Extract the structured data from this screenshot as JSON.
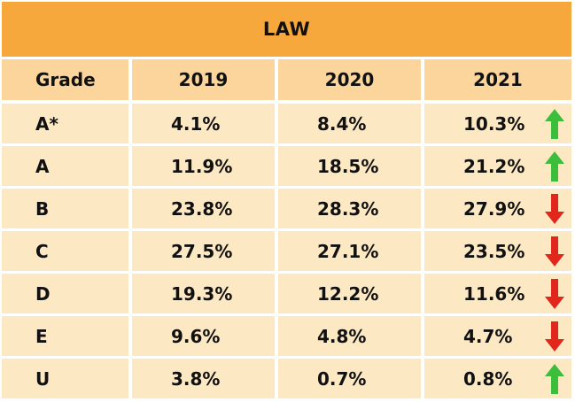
{
  "table": {
    "title": "LAW",
    "headers": [
      "Grade",
      "2019",
      "2020",
      "2021"
    ],
    "rows": [
      {
        "grade": "A*",
        "y2019": "4.1%",
        "y2020": "8.4%",
        "y2021": "10.3%",
        "trend": "up"
      },
      {
        "grade": "A",
        "y2019": "11.9%",
        "y2020": "18.5%",
        "y2021": "21.2%",
        "trend": "up"
      },
      {
        "grade": "B",
        "y2019": "23.8%",
        "y2020": "28.3%",
        "y2021": "27.9%",
        "trend": "down"
      },
      {
        "grade": "C",
        "y2019": "27.5%",
        "y2020": "27.1%",
        "y2021": "23.5%",
        "trend": "down"
      },
      {
        "grade": "D",
        "y2019": "19.3%",
        "y2020": "12.2%",
        "y2021": "11.6%",
        "trend": "down"
      },
      {
        "grade": "E",
        "y2019": "9.6%",
        "y2020": "4.8%",
        "y2021": "4.7%",
        "trend": "down"
      },
      {
        "grade": "U",
        "y2019": "3.8%",
        "y2020": "0.7%",
        "y2021": "0.8%",
        "trend": "up"
      }
    ]
  },
  "colors": {
    "title_bg": "#F6A83D",
    "header_bg": "#FBD59B",
    "row_bg": "#FDE8C4",
    "up_arrow": "#3DBE3B",
    "down_arrow": "#E2261C"
  },
  "icons": {
    "up": "arrow-up-icon",
    "down": "arrow-down-icon"
  }
}
